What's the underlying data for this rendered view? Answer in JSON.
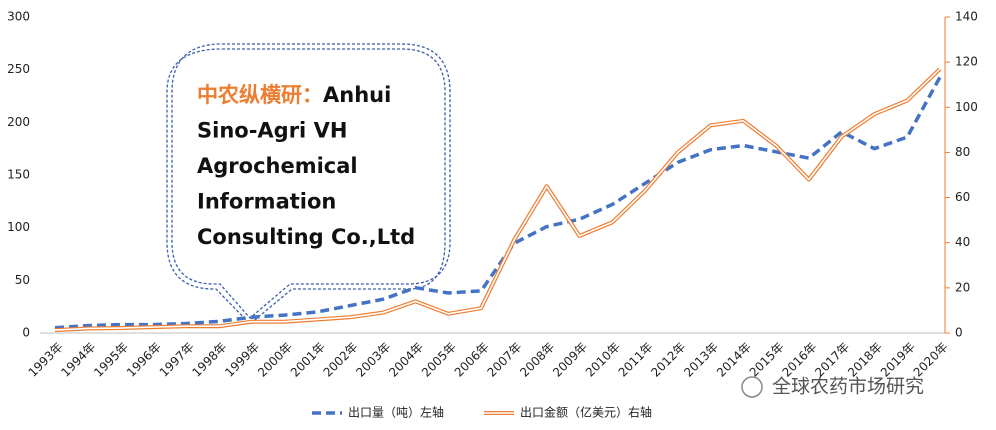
{
  "chart_data": {
    "type": "line",
    "categories": [
      "1993年",
      "1994年",
      "1995年",
      "1996年",
      "1997年",
      "1998年",
      "1999年",
      "2000年",
      "2001年",
      "2002年",
      "2003年",
      "2004年",
      "2005年",
      "2006年",
      "2007年",
      "2008年",
      "2009年",
      "2010年",
      "2011年",
      "2012年",
      "2013年",
      "2014年",
      "2015年",
      "2016年",
      "2017年",
      "2018年",
      "2019年",
      "2020年"
    ],
    "series": [
      {
        "name": "出口量（吨）左轴",
        "color": "#4472c4",
        "values": [
          5,
          7,
          8,
          8,
          9,
          11,
          15,
          17,
          20,
          26,
          32,
          43,
          38,
          40,
          85,
          101,
          108,
          122,
          142,
          162,
          174,
          178,
          172,
          166,
          191,
          175,
          186,
          243
        ]
      },
      {
        "name": "出口金额（亿美元）右轴",
        "color": "#ed7d31",
        "axis": "y2",
        "values": [
          1.3,
          2,
          2.2,
          2.6,
          3,
          3,
          5,
          5,
          6,
          7,
          9,
          14,
          8.5,
          11,
          41,
          65,
          43,
          49,
          63,
          80,
          92,
          94,
          83,
          68,
          87,
          97,
          103,
          117
        ]
      }
    ],
    "ylim": [
      0,
      300
    ],
    "yticks": [
      0,
      50,
      100,
      150,
      200,
      250,
      300
    ],
    "y2lim": [
      0,
      140
    ],
    "y2ticks": [
      0,
      20,
      40,
      60,
      80,
      100,
      120,
      140
    ],
    "annotation": {
      "prefix": "中农纵横研：",
      "lines": [
        "Anhui",
        "Sino-Agri VH",
        "Agrochemical",
        "Information",
        "Consulting Co.,Ltd"
      ]
    },
    "watermark": "全球农药市场研究"
  }
}
